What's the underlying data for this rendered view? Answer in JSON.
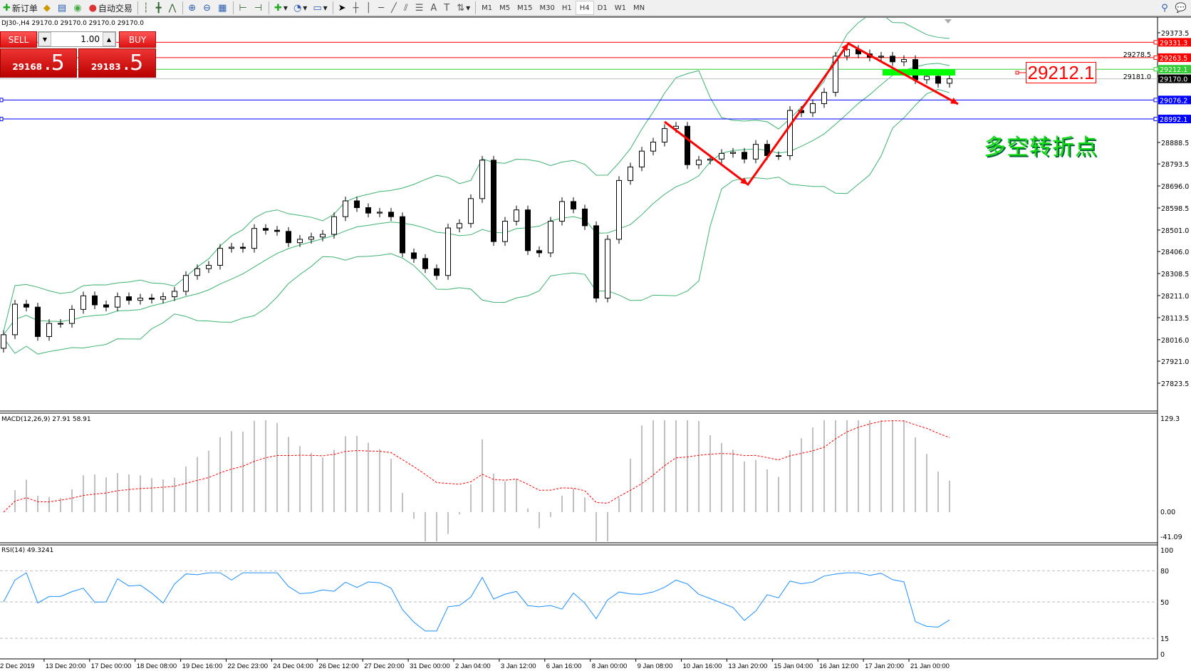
{
  "toolbar": {
    "new_order": "新订单",
    "auto_trading": "自动交易",
    "timeframes": [
      "M1",
      "M5",
      "M15",
      "M30",
      "H1",
      "H4",
      "D1",
      "W1",
      "MN"
    ],
    "active_timeframe": "H4"
  },
  "chart_title": "DJ30-,H4  29170.0 29170.0 29170.0 29170.0",
  "trade_panel": {
    "sell_label": "SELL",
    "buy_label": "BUY",
    "lot": "1.00",
    "sell_price_main": "29168",
    "sell_price_big": ".5",
    "buy_price_main": "29183",
    "buy_price_big": ".5"
  },
  "annotations": {
    "price_box": "29212.1",
    "text": "多空转折点",
    "arrow_color": "#ff0000",
    "zone_color": "#00ff00"
  },
  "indicators": {
    "macd_label": "MACD(12,26,9) 27.91 58.91",
    "rsi_label": "RSI(14) 49.3241"
  },
  "chart_data": [
    {
      "type": "candlestick",
      "symbol": "DJ30-",
      "timeframe": "H4",
      "ylim": [
        27823.5,
        29373.5
      ],
      "price_ticks": [
        "29373.5",
        "29278.5",
        "29181.0",
        "28888.5",
        "28793.5",
        "28696.0",
        "28598.5",
        "28501.0",
        "28406.0",
        "28308.5",
        "28211.0",
        "28113.5",
        "28016.0",
        "27921.0",
        "27823.5"
      ],
      "time_ticks": [
        "2 Dec 2019",
        "13 Dec 20:00",
        "17 Dec 00:00",
        "18 Dec 08:00",
        "19 Dec 16:00",
        "22 Dec 23:00",
        "24 Dec 04:00",
        "26 Dec 12:00",
        "27 Dec 20:00",
        "31 Dec 00:00",
        "2 Jan 04:00",
        "3 Jan 12:00",
        "6 Jan 16:00",
        "8 Jan 00:00",
        "9 Jan 08:00",
        "10 Jan 16:00",
        "13 Jan 20:00",
        "15 Jan 04:00",
        "16 Jan 12:00",
        "17 Jan 20:00",
        "21 Jan 00:00"
      ],
      "close": [
        28038,
        28173,
        28160,
        28030,
        28088,
        28088,
        28150,
        28210,
        28170,
        28160,
        28206,
        28190,
        28200,
        28195,
        28206,
        28230,
        28300,
        28330,
        28345,
        28420,
        28425,
        28420,
        28508,
        28500,
        28495,
        28445,
        28460,
        28470,
        28482,
        28560,
        28630,
        28600,
        28576,
        28580,
        28560,
        28400,
        28375,
        28330,
        28300,
        28510,
        28530,
        28640,
        28810,
        28450,
        28540,
        28590,
        28410,
        28400,
        28540,
        28627,
        28594,
        28520,
        28200,
        28460,
        28720,
        28780,
        28850,
        28890,
        28950,
        28960,
        28790,
        28810,
        28815,
        28840,
        28845,
        28815,
        28880,
        28830,
        28830,
        29030,
        29020,
        29060,
        29110,
        29270,
        29300,
        29280,
        29266,
        29270,
        29245,
        29255,
        29166,
        29181,
        29150,
        29170
      ],
      "horizontal_lines": [
        {
          "price": "29331.3",
          "color": "#ff0000"
        },
        {
          "price": "29263.5",
          "color": "#ff0000"
        },
        {
          "price": "29212.1",
          "color": "#32cd32"
        },
        {
          "price": "29170.0",
          "color": "#c0c0c0",
          "label_bg": "#000000"
        },
        {
          "price": "29076.2",
          "color": "#0000ff"
        },
        {
          "price": "28992.1",
          "color": "#0000ff"
        }
      ],
      "bollinger_color": "#3cb371"
    },
    {
      "type": "bar",
      "name": "MACD(12,26,9)",
      "ylim": [
        -41.09,
        129.3
      ],
      "ticks": [
        "129.3",
        "0.00",
        "-41.09"
      ],
      "histogram_color": "#c0c0c0",
      "signal_color": "#ff0000"
    },
    {
      "type": "line",
      "name": "RSI(14)",
      "ylim": [
        0,
        100
      ],
      "ticks": [
        "100",
        "80",
        "50",
        "15",
        "0"
      ],
      "levels": [
        80,
        50,
        15
      ],
      "color": "#1e90ff"
    }
  ]
}
